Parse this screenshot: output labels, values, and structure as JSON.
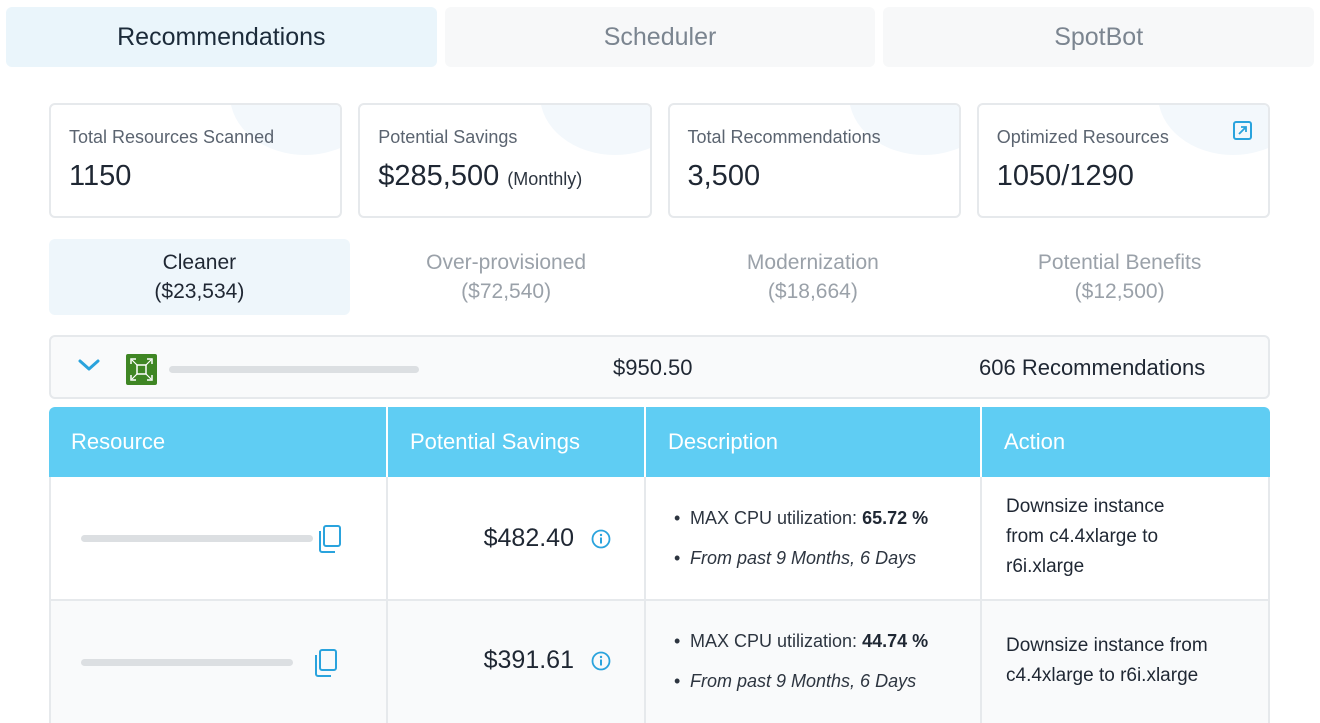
{
  "top_tabs": [
    {
      "label": "Recommendations",
      "active": true
    },
    {
      "label": "Scheduler",
      "active": false
    },
    {
      "label": "SpotBot",
      "active": false
    }
  ],
  "stats": [
    {
      "label": "Total Resources Scanned",
      "value": "1150"
    },
    {
      "label": "Potential Savings",
      "value": "$285,500",
      "suffix": "(Monthly)"
    },
    {
      "label": "Total Recommendations",
      "value": "3,500"
    },
    {
      "label": "Optimized Resources",
      "value": "1050/1290",
      "icon": "external-link-icon"
    }
  ],
  "categories": [
    {
      "name": "Cleaner",
      "amount": "($23,534)",
      "active": true
    },
    {
      "name": "Over-provisioned",
      "amount": "($72,540)",
      "active": false
    },
    {
      "name": "Modernization",
      "amount": "($18,664)",
      "active": false
    },
    {
      "name": "Potential Benefits",
      "amount": "($12,500)",
      "active": false
    }
  ],
  "group": {
    "icon": "ec2-instance-icon",
    "amount": "$950.50",
    "count": "606 Recommendations"
  },
  "table": {
    "headers": [
      "Resource",
      "Potential Savings",
      "Description",
      "Action"
    ],
    "rows": [
      {
        "saving": "$482.40",
        "desc_metric_label": "MAX CPU utilization: ",
        "desc_metric_value": "65.72 %",
        "desc_period": "From past 9 Months, 6 Days",
        "action": "Downsize instance from c4.4xlarge to r6i.xlarge"
      },
      {
        "saving": "$391.61",
        "desc_metric_label": "MAX CPU utilization: ",
        "desc_metric_value": "44.74 %",
        "desc_period": "From past 9 Months, 6 Days",
        "action": "Downsize instance from c4.4xlarge to r6i.xlarge"
      }
    ]
  },
  "colors": {
    "accent": "#2aa3dd",
    "table_header": "#5fcdf3",
    "active_tab": "#eaf5fb",
    "service_icon": "#3f8624"
  }
}
